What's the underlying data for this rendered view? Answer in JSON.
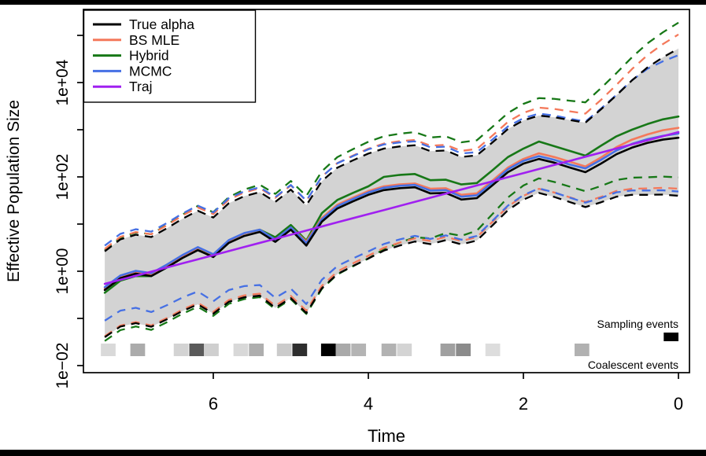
{
  "chart_data": {
    "type": "line",
    "xlabel": "Time",
    "ylabel": "Effective Population Size",
    "x_axis": {
      "ticks": [
        6,
        4,
        2,
        0
      ],
      "direction": "reversed",
      "range": [
        7.6,
        0
      ]
    },
    "y_axis": {
      "scale": "log10",
      "tick_exponents": [
        -2,
        -1,
        0,
        1,
        2,
        3,
        4,
        5
      ],
      "labeled_ticks": {
        "-2": "1e−02",
        "0": "1e+00",
        "2": "1e+02",
        "4": "1e+04"
      }
    },
    "band_color": "#d3d3d3",
    "x": [
      7.4,
      7.2,
      7.0,
      6.8,
      6.6,
      6.4,
      6.2,
      6.0,
      5.8,
      5.6,
      5.4,
      5.2,
      5.0,
      4.8,
      4.6,
      4.4,
      4.2,
      4.0,
      3.8,
      3.6,
      3.4,
      3.2,
      3.0,
      2.8,
      2.6,
      2.4,
      2.2,
      2.0,
      1.8,
      1.6,
      1.4,
      1.2,
      1.0,
      0.8,
      0.6,
      0.4,
      0.2,
      0.0
    ],
    "series": [
      {
        "label": "True alpha",
        "color": "#000000",
        "style": "solid",
        "has_ci": true,
        "values": [
          0.4,
          0.71,
          0.89,
          0.79,
          1.2,
          1.9,
          2.8,
          2.0,
          4.0,
          5.6,
          6.8,
          4.2,
          7.6,
          3.5,
          11.2,
          21.4,
          30.2,
          41.7,
          52.5,
          57.5,
          60.3,
          44.7,
          45.7,
          33.1,
          35.5,
          66.1,
          126,
          191,
          240,
          200,
          158,
          126,
          191,
          302,
          417,
          525,
          617,
          676
        ],
        "ci_upper_extra": [
          [
            0,
            0
          ],
          [
            7.4,
            0
          ]
        ],
        "ci_lower_extra": [
          [
            0,
            0
          ],
          [
            7.4,
            0
          ]
        ]
      },
      {
        "label": "BS MLE",
        "color": "#F4795B",
        "style": "solid",
        "has_ci": true,
        "values": [
          0.43,
          0.76,
          0.95,
          0.85,
          1.29,
          2.04,
          3.16,
          2.24,
          4.47,
          6.31,
          7.59,
          4.68,
          8.51,
          4.27,
          13.5,
          25.7,
          36.3,
          50.1,
          63.1,
          69.2,
          72.4,
          56.2,
          57.5,
          41.7,
          44.7,
          83.2,
          158,
          240,
          316,
          263,
          209,
          166,
          257,
          427,
          617,
          794,
          977,
          1096
        ],
        "ci_upper_extra": [
          [
            0,
            0.3
          ],
          [
            1,
            0.2
          ],
          [
            3,
            0.12
          ],
          [
            7.4,
            0.05
          ]
        ],
        "ci_lower_extra": [
          [
            0,
            0.15
          ],
          [
            2,
            0.08
          ],
          [
            7.4,
            0.02
          ]
        ]
      },
      {
        "label": "Hybrid",
        "color": "#177817",
        "style": "solid",
        "has_ci": true,
        "values": [
          0.35,
          0.63,
          0.79,
          0.79,
          1.2,
          1.91,
          2.82,
          2.24,
          4.47,
          6.31,
          7.59,
          5.25,
          9.55,
          4.47,
          17.0,
          32.4,
          45.7,
          63.1,
          100,
          110,
          115,
          85.1,
          87.1,
          69.2,
          74.1,
          138,
          263,
          398,
          562,
          447,
          355,
          282,
          457,
          724,
          1000,
          1318,
          1660,
          1905
        ],
        "ci_upper_extra": [
          [
            0,
            0.55
          ],
          [
            2,
            0.35
          ],
          [
            4,
            0.25
          ],
          [
            7.4,
            0.02
          ]
        ],
        "ci_lower_extra": [
          [
            0,
            0.39
          ],
          [
            2,
            0.3
          ],
          [
            4,
            0.0
          ],
          [
            7.4,
            -0.08
          ]
        ]
      },
      {
        "label": "MCMC",
        "color": "#4670E4",
        "style": "solid",
        "has_ci": true,
        "values": [
          0.46,
          0.81,
          1.02,
          0.91,
          1.38,
          2.19,
          3.24,
          2.29,
          4.57,
          6.46,
          7.59,
          4.68,
          8.51,
          3.98,
          12.6,
          24.0,
          33.9,
          46.8,
          58.9,
          64.6,
          67.6,
          51.3,
          52.5,
          38.0,
          40.7,
          75.9,
          145,
          219,
          275,
          229,
          182,
          151,
          229,
          363,
          501,
          631,
          741,
          832
        ],
        "ci_upper_extra": [
          [
            0,
            -0.14
          ],
          [
            0.5,
            0.0
          ],
          [
            3,
            0.08
          ],
          [
            7.4,
            0.12
          ]
        ],
        "ci_lower_extra": [
          [
            0,
            0.09
          ],
          [
            3,
            0.1
          ],
          [
            5,
            0.2
          ],
          [
            7.4,
            0.35
          ]
        ]
      },
      {
        "label": "Traj",
        "color": "#A020F0",
        "style": "solid",
        "has_ci": false,
        "values": [
          0.54,
          0.66,
          0.8,
          0.98,
          1.2,
          1.47,
          1.79,
          2.19,
          2.67,
          3.27,
          3.99,
          4.88,
          5.96,
          7.28,
          8.89,
          10.9,
          13.3,
          16.2,
          19.8,
          24.2,
          29.6,
          36.1,
          44.2,
          54.0,
          65.9,
          80.5,
          98.4,
          120,
          147,
          180,
          219,
          268,
          327,
          400,
          489,
          597,
          729,
          891
        ]
      }
    ],
    "ci_upper_offset_decades": [
      [
        0,
        1.89
      ],
      [
        0.4,
        1.6
      ],
      [
        0.8,
        1.25
      ],
      [
        1.2,
        1.05
      ],
      [
        1.8,
        0.92
      ],
      [
        3.0,
        0.9
      ],
      [
        5.0,
        0.85
      ],
      [
        7.4,
        0.82
      ]
    ],
    "ci_lower_offset_decades": [
      [
        0,
        1.23
      ],
      [
        0.4,
        1.1
      ],
      [
        0.8,
        0.9
      ],
      [
        1.2,
        0.74
      ],
      [
        1.8,
        0.72
      ],
      [
        2.4,
        0.85
      ],
      [
        3.0,
        1.0
      ],
      [
        3.4,
        1.15
      ],
      [
        4.0,
        1.35
      ],
      [
        5.0,
        1.45
      ],
      [
        6.2,
        1.15
      ],
      [
        7.4,
        1.0
      ]
    ],
    "legend_position": "top-left",
    "events": {
      "sampling": {
        "label": "Sampling events",
        "bin_width_t": 0.19,
        "cells": [
          {
            "t": 0.19,
            "shade": "#000000"
          }
        ]
      },
      "coalescent": {
        "label": "Coalescent events",
        "bin_width_t": 0.19,
        "cells": [
          {
            "t": 7.45,
            "shade": "#d9d9d9"
          },
          {
            "t": 7.07,
            "shade": "#ababab"
          },
          {
            "t": 6.51,
            "shade": "#d3d3d3"
          },
          {
            "t": 6.31,
            "shade": "#5a5a5a"
          },
          {
            "t": 6.12,
            "shade": "#cfcfcf"
          },
          {
            "t": 5.74,
            "shade": "#d8d8d8"
          },
          {
            "t": 5.54,
            "shade": "#aeaeae"
          },
          {
            "t": 5.18,
            "shade": "#cbcbcb"
          },
          {
            "t": 4.98,
            "shade": "#2e2e2e"
          },
          {
            "t": 4.61,
            "shade": "#000000"
          },
          {
            "t": 4.42,
            "shade": "#a9a9a9"
          },
          {
            "t": 4.22,
            "shade": "#b4b4b4"
          },
          {
            "t": 3.83,
            "shade": "#b2b2b2"
          },
          {
            "t": 3.63,
            "shade": "#d4d4d4"
          },
          {
            "t": 3.07,
            "shade": "#a0a0a0"
          },
          {
            "t": 2.87,
            "shade": "#8b8b8b"
          },
          {
            "t": 2.49,
            "shade": "#dddddd"
          },
          {
            "t": 1.34,
            "shade": "#b1b1b1"
          }
        ]
      }
    }
  }
}
